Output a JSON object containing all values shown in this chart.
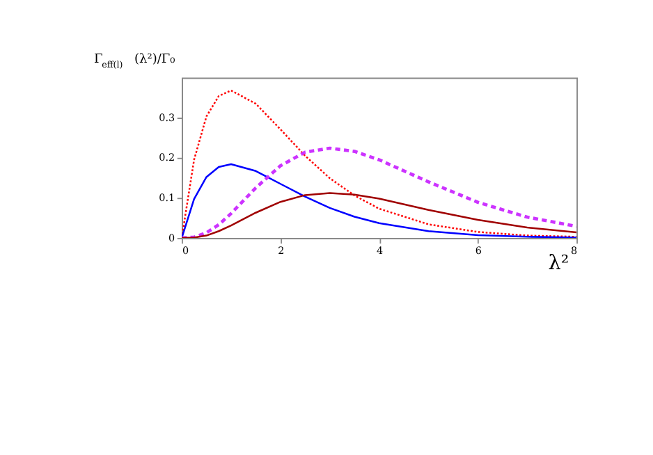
{
  "chart_data": {
    "type": "line",
    "xlabel": "λ²",
    "ylabel": "Γ$_{eff(l)}$(λ²)/Γ₀",
    "x": [
      0,
      0.25,
      0.5,
      0.75,
      1,
      1.5,
      2,
      2.5,
      3,
      3.5,
      4,
      5,
      6,
      7,
      8
    ],
    "series": [
      {
        "color": "#ff0000",
        "line_style": "dotted",
        "values": [
          0,
          0.195,
          0.303,
          0.354,
          0.368,
          0.335,
          0.271,
          0.205,
          0.149,
          0.106,
          0.073,
          0.034,
          0.015,
          0.006,
          0.003
        ]
      },
      {
        "color": "#0000ff",
        "line_style": "solid",
        "values": [
          0,
          0.097,
          0.152,
          0.177,
          0.184,
          0.167,
          0.135,
          0.103,
          0.075,
          0.053,
          0.037,
          0.017,
          0.007,
          0.003,
          0.001
        ]
      },
      {
        "color": "#cc33ff",
        "line_style": "dashed",
        "values": [
          0,
          0.002,
          0.013,
          0.033,
          0.061,
          0.125,
          0.18,
          0.214,
          0.224,
          0.216,
          0.195,
          0.14,
          0.089,
          0.052,
          0.029
        ]
      },
      {
        "color": "#a00000",
        "line_style": "solid",
        "values": [
          0,
          0.001,
          0.006,
          0.017,
          0.031,
          0.063,
          0.09,
          0.107,
          0.112,
          0.108,
          0.098,
          0.07,
          0.045,
          0.026,
          0.014
        ]
      }
    ],
    "xlim": [
      0,
      8
    ],
    "xticks": [
      0,
      2,
      4,
      6,
      8
    ],
    "ylim": [
      0,
      0.4
    ],
    "yticks": [
      0,
      0.1,
      0.2,
      0.3
    ],
    "grid": false,
    "legend": false,
    "marker": "none"
  }
}
